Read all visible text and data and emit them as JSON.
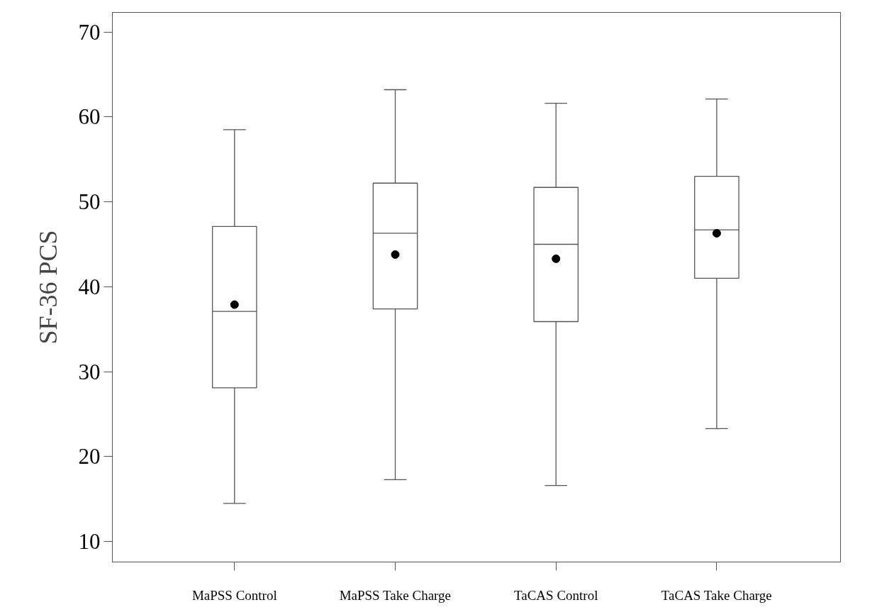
{
  "chart_data": {
    "type": "box",
    "ylabel": "SF-36 PCS",
    "categories": [
      "MaPSS Control",
      "MaPSS Take Charge",
      "TaCAS Control",
      "TaCAS Take Charge"
    ],
    "boxes": [
      {
        "low": 14.5,
        "q1": 28.1,
        "median": 37.1,
        "q3": 47.1,
        "high": 58.5,
        "mean": 37.9
      },
      {
        "low": 17.3,
        "q1": 37.4,
        "median": 46.3,
        "q3": 52.2,
        "high": 63.2,
        "mean": 43.8
      },
      {
        "low": 16.6,
        "q1": 35.9,
        "median": 45.0,
        "q3": 51.7,
        "high": 61.6,
        "mean": 43.3
      },
      {
        "low": 23.3,
        "q1": 41.0,
        "median": 46.7,
        "q3": 53.0,
        "high": 62.1,
        "mean": 46.3
      }
    ],
    "color": "#ffffff",
    "ylim": [
      7.6,
      72.3
    ],
    "yticks": [
      10,
      20,
      30,
      40,
      50,
      60,
      70
    ],
    "grid": false
  }
}
